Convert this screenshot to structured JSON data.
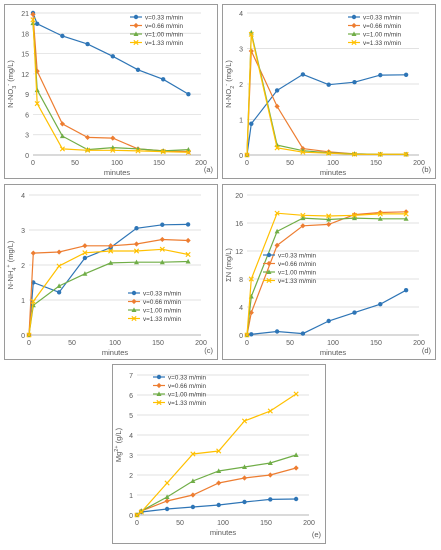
{
  "chart_data": [
    {
      "panel_label": "(a)",
      "type": "line",
      "xlabel": "minutes",
      "ylabel": "N-NO3- (mg/L)",
      "ylabel_main": "N-NO",
      "ylabel_sub": "3",
      "ylabel_sup": "-",
      "ylabel_unit": " (mg/L)",
      "xlim": [
        0,
        200
      ],
      "ylim": [
        0,
        21
      ],
      "xticks": [
        0,
        50,
        100,
        150,
        200
      ],
      "yticks": [
        0,
        3,
        6,
        9,
        12,
        15,
        18,
        21
      ],
      "legend_position": "top-right",
      "series": [
        {
          "name": "v=0.33 m/min",
          "color": "#2e75b6",
          "marker": "circle",
          "x": [
            0,
            5,
            35,
            65,
            95,
            125,
            155,
            185
          ],
          "y": [
            21,
            19.4,
            17.6,
            16.4,
            14.6,
            12.6,
            11.2,
            9.0
          ]
        },
        {
          "name": "v=0.66 m/min",
          "color": "#ed7d31",
          "marker": "diamond",
          "x": [
            0,
            5,
            35,
            65,
            95,
            125,
            155,
            185
          ],
          "y": [
            20.8,
            12.4,
            4.6,
            2.6,
            2.5,
            0.9,
            0.6,
            0.5
          ]
        },
        {
          "name": "v=1.00 m/min",
          "color": "#70ad47",
          "marker": "triangle",
          "x": [
            0,
            5,
            35,
            65,
            95,
            125,
            155,
            185
          ],
          "y": [
            19.5,
            9.6,
            2.8,
            0.8,
            1.1,
            0.9,
            0.6,
            0.8
          ]
        },
        {
          "name": "v=1.33 m/min",
          "color": "#ffc000",
          "marker": "x",
          "x": [
            0,
            5,
            35,
            65,
            95,
            125,
            155,
            185
          ],
          "y": [
            20.0,
            7.6,
            0.9,
            0.7,
            0.7,
            0.6,
            0.5,
            0.4
          ]
        }
      ]
    },
    {
      "panel_label": "(b)",
      "type": "line",
      "xlabel": "minutes",
      "ylabel": "N-NO2- (mg/L)",
      "ylabel_main": "N-NO",
      "ylabel_sub": "2",
      "ylabel_sup": "-",
      "ylabel_unit": " (mg/L)",
      "xlim": [
        0,
        200
      ],
      "ylim": [
        0,
        4
      ],
      "xticks": [
        0,
        50,
        100,
        150,
        200
      ],
      "yticks": [
        0,
        1,
        2,
        3,
        4
      ],
      "legend_position": "top-right",
      "series": [
        {
          "name": "v=0.33 m/min",
          "color": "#2e75b6",
          "marker": "circle",
          "x": [
            0,
            5,
            35,
            65,
            95,
            125,
            155,
            185
          ],
          "y": [
            0,
            0.88,
            1.82,
            2.27,
            1.98,
            2.05,
            2.25,
            2.26
          ]
        },
        {
          "name": "v=0.66 m/min",
          "color": "#ed7d31",
          "marker": "diamond",
          "x": [
            0,
            5,
            35,
            65,
            95,
            125,
            155,
            185
          ],
          "y": [
            0,
            2.93,
            1.37,
            0.18,
            0.09,
            0.03,
            0.02,
            0.02
          ]
        },
        {
          "name": "v=1.00 m/min",
          "color": "#70ad47",
          "marker": "triangle",
          "x": [
            0,
            5,
            35,
            65,
            95,
            125,
            155,
            185
          ],
          "y": [
            0,
            3.45,
            0.28,
            0.12,
            0.06,
            0.03,
            0.02,
            0.02
          ]
        },
        {
          "name": "v=1.33 m/min",
          "color": "#ffc000",
          "marker": "x",
          "x": [
            0,
            5,
            35,
            65,
            95,
            125,
            155,
            185
          ],
          "y": [
            0,
            3.4,
            0.2,
            0.08,
            0.05,
            0.02,
            0.02,
            0.02
          ]
        }
      ]
    },
    {
      "panel_label": "(c)",
      "type": "line",
      "xlabel": "minutes",
      "ylabel": "N-NH4+ (mg/L)",
      "ylabel_main": "N-NH",
      "ylabel_sub": "4",
      "ylabel_sup": "+",
      "ylabel_unit": " (mg/L)",
      "xlim": [
        0,
        200
      ],
      "ylim": [
        0,
        4
      ],
      "xticks": [
        0,
        50,
        100,
        150,
        200
      ],
      "yticks": [
        0,
        1,
        2,
        3,
        4
      ],
      "legend_position": "bottom-right",
      "series": [
        {
          "name": "v=0.33 m/min",
          "color": "#2e75b6",
          "marker": "circle",
          "x": [
            0,
            5,
            35,
            65,
            95,
            125,
            155,
            185
          ],
          "y": [
            0,
            1.5,
            1.22,
            2.2,
            2.5,
            3.05,
            3.15,
            3.16
          ]
        },
        {
          "name": "v=0.66 m/min",
          "color": "#ed7d31",
          "marker": "diamond",
          "x": [
            0,
            5,
            35,
            65,
            95,
            125,
            155,
            185
          ],
          "y": [
            0,
            2.34,
            2.37,
            2.55,
            2.55,
            2.6,
            2.73,
            2.7
          ]
        },
        {
          "name": "v=1.00 m/min",
          "color": "#70ad47",
          "marker": "triangle",
          "x": [
            0,
            5,
            35,
            65,
            95,
            125,
            155,
            185
          ],
          "y": [
            0,
            0.85,
            1.4,
            1.75,
            2.06,
            2.08,
            2.08,
            2.1
          ]
        },
        {
          "name": "v=1.33 m/min",
          "color": "#ffc000",
          "marker": "x",
          "x": [
            0,
            5,
            35,
            65,
            95,
            125,
            155,
            185
          ],
          "y": [
            0,
            0.96,
            1.97,
            2.35,
            2.4,
            2.4,
            2.45,
            2.3
          ]
        }
      ]
    },
    {
      "panel_label": "(d)",
      "type": "line",
      "xlabel": "minutes",
      "ylabel": "ΣN (mg/L)",
      "ylabel_main": "ΣN",
      "ylabel_sub": "",
      "ylabel_sup": "",
      "ylabel_unit": " (mg/L)",
      "xlim": [
        0,
        200
      ],
      "ylim": [
        0,
        20
      ],
      "xticks": [
        0,
        50,
        100,
        150,
        200
      ],
      "yticks": [
        0,
        4,
        8,
        12,
        16,
        20
      ],
      "legend_position": "center-left",
      "series": [
        {
          "name": "v=0.33 m/min",
          "color": "#2e75b6",
          "marker": "circle",
          "x": [
            0,
            5,
            35,
            65,
            95,
            125,
            155,
            185
          ],
          "y": [
            0,
            0.1,
            0.5,
            0.2,
            2.0,
            3.2,
            4.4,
            6.4
          ]
        },
        {
          "name": "v=0.66 m/min",
          "color": "#ed7d31",
          "marker": "diamond",
          "x": [
            0,
            5,
            35,
            65,
            95,
            125,
            155,
            185
          ],
          "y": [
            0,
            3.2,
            12.8,
            15.6,
            15.8,
            17.2,
            17.5,
            17.6
          ]
        },
        {
          "name": "v=1.00 m/min",
          "color": "#70ad47",
          "marker": "triangle",
          "x": [
            0,
            5,
            35,
            65,
            95,
            125,
            155,
            185
          ],
          "y": [
            0,
            5.5,
            14.8,
            16.7,
            16.5,
            16.7,
            16.6,
            16.6
          ]
        },
        {
          "name": "v=1.33 m/min",
          "color": "#ffc000",
          "marker": "x",
          "x": [
            0,
            5,
            35,
            65,
            95,
            125,
            155,
            185
          ],
          "y": [
            0,
            8.0,
            17.4,
            17.1,
            17.0,
            17.1,
            17.3,
            17.3
          ]
        }
      ]
    },
    {
      "panel_label": "(e)",
      "type": "line",
      "xlabel": "minutes",
      "ylabel": "Mg2+ (g/L)",
      "ylabel_main": "Mg",
      "ylabel_sub": "",
      "ylabel_sup": "2+",
      "ylabel_unit": " (g/L)",
      "xlim": [
        0,
        200
      ],
      "ylim": [
        0,
        7
      ],
      "xticks": [
        0,
        50,
        100,
        150,
        200
      ],
      "yticks": [
        0,
        1,
        2,
        3,
        4,
        5,
        6,
        7
      ],
      "legend_position": "top-left",
      "series": [
        {
          "name": "v=0.33 m/min",
          "color": "#2e75b6",
          "marker": "circle",
          "x": [
            0,
            5,
            35,
            65,
            95,
            125,
            155,
            185
          ],
          "y": [
            0,
            0.15,
            0.3,
            0.4,
            0.5,
            0.65,
            0.78,
            0.8
          ]
        },
        {
          "name": "v=0.66 m/min",
          "color": "#ed7d31",
          "marker": "diamond",
          "x": [
            0,
            5,
            35,
            65,
            95,
            125,
            155,
            185
          ],
          "y": [
            0,
            0.2,
            0.7,
            1.0,
            1.6,
            1.85,
            2.0,
            2.35
          ]
        },
        {
          "name": "v=1.00 m/min",
          "color": "#70ad47",
          "marker": "triangle",
          "x": [
            0,
            5,
            35,
            65,
            95,
            125,
            155,
            185
          ],
          "y": [
            0,
            0.2,
            0.9,
            1.7,
            2.2,
            2.4,
            2.6,
            3.0
          ]
        },
        {
          "name": "v=1.33 m/min",
          "color": "#ffc000",
          "marker": "x",
          "x": [
            0,
            5,
            35,
            65,
            95,
            125,
            155,
            185
          ],
          "y": [
            0,
            0.15,
            1.6,
            3.05,
            3.2,
            4.7,
            5.2,
            6.05
          ]
        }
      ]
    }
  ]
}
